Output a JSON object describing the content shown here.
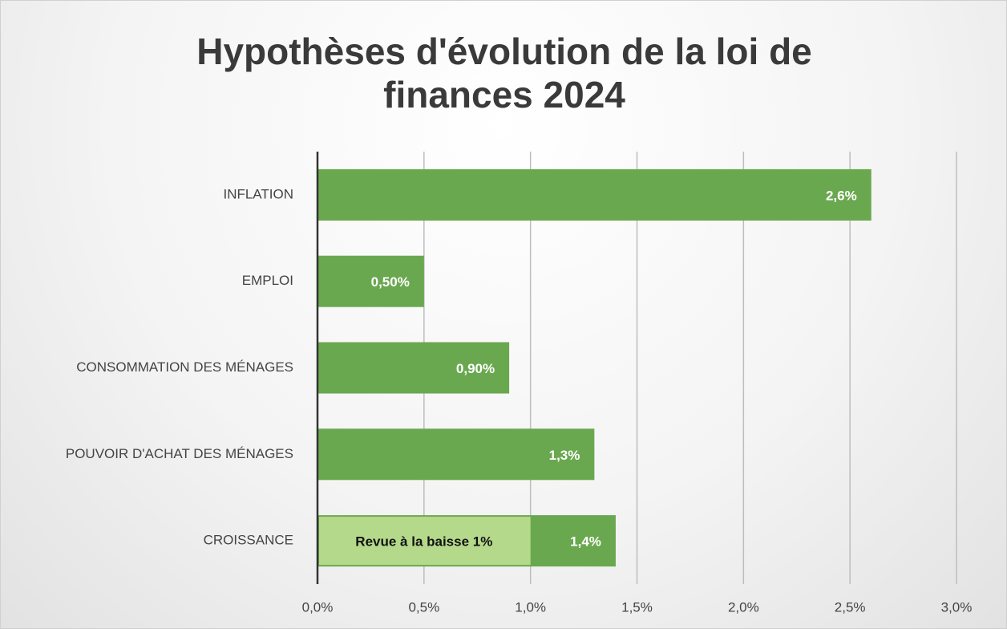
{
  "chart_data": {
    "type": "barh",
    "title": "Hypothèses d'évolution de la loi de finances 2024",
    "categories": [
      "INFLATION",
      "EMPLOI",
      "CONSOMMATION DES MÉNAGES",
      "POUVOIR D'ACHAT DES MÉNAGES",
      "CROISSANCE"
    ],
    "values": [
      2.6,
      0.5,
      0.9,
      1.3,
      1.4
    ],
    "value_labels": [
      "2,6%",
      "0,50%",
      "0,90%",
      "1,3%",
      "1,4%"
    ],
    "color": "#6aa84f",
    "xlim": [
      0,
      3
    ],
    "xticks": [
      {
        "value": 0,
        "label": "0,0%"
      },
      {
        "value": 0.5,
        "label": "0,5%"
      },
      {
        "value": 1,
        "label": "1,0%"
      },
      {
        "value": 1.5,
        "label": "1,5%"
      },
      {
        "value": 2,
        "label": "2,0%"
      },
      {
        "value": 2.5,
        "label": "2,5%"
      },
      {
        "value": 3,
        "label": "3,0%"
      }
    ],
    "grid": true,
    "annotations": [
      {
        "text": "Revue à la baisse 1%",
        "category": "CROISSANCE",
        "value": 1,
        "color": "#b5d98a"
      }
    ]
  }
}
